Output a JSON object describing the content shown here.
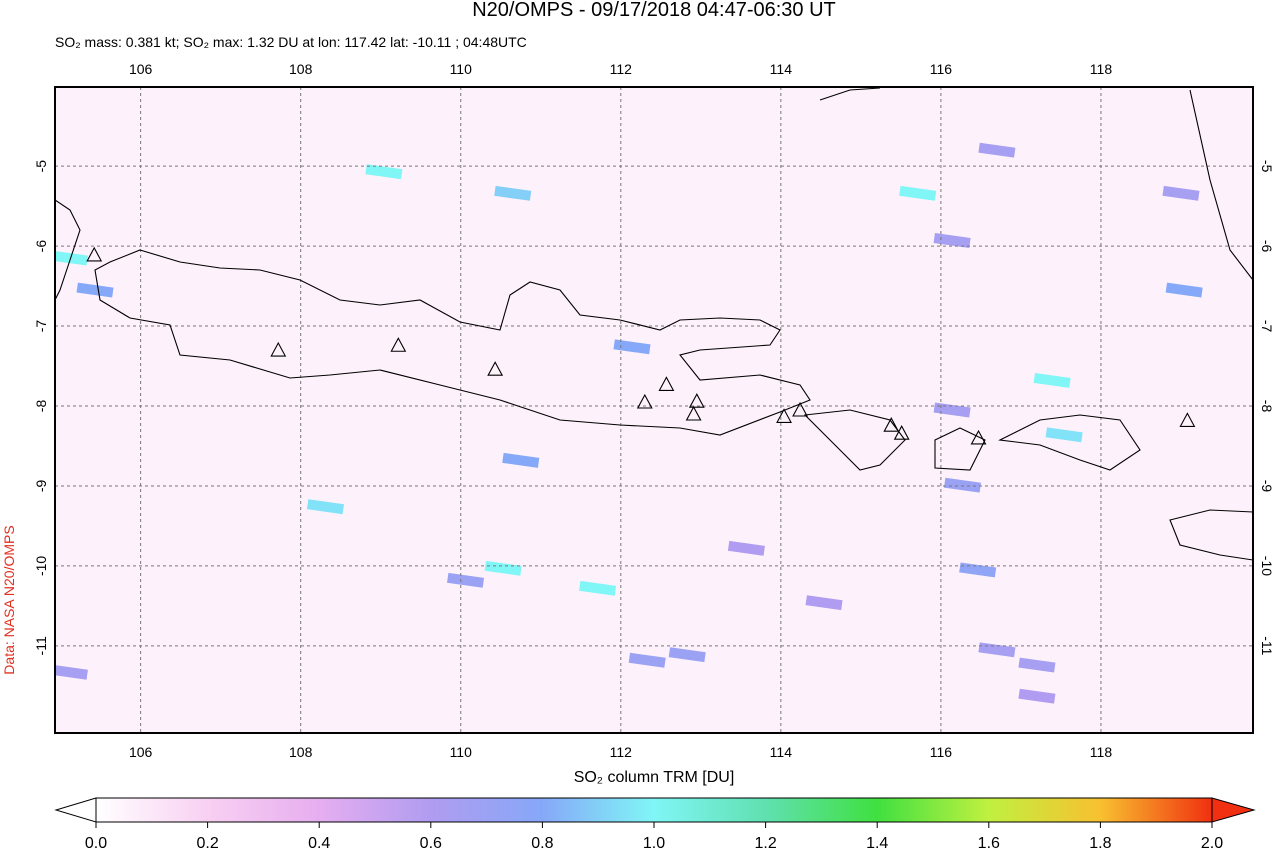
{
  "title": "N20/OMPS - 09/17/2018 04:47-06:30 UT",
  "subtitle": "SO₂ mass: 0.381 kt; SO₂ max: 1.32 DU at lon: 117.42 lat: -10.11 ; 04:48UTC",
  "credit": "Data: NASA N20/OMPS",
  "map": {
    "xlim": [
      104.93,
      119.9
    ],
    "ylim": [
      -12.09,
      -4.01
    ],
    "xticks": [
      106,
      108,
      110,
      112,
      114,
      116,
      118
    ],
    "yticks": [
      -5,
      -6,
      -7,
      -8,
      -9,
      -10,
      -11
    ],
    "volcanoes": {
      "lon": [
        105.42,
        107.72,
        109.22,
        110.43,
        112.3,
        112.57,
        112.95,
        112.91,
        114.04,
        114.24,
        115.38,
        115.51,
        116.47,
        119.08
      ],
      "lat": [
        -6.11,
        -7.3,
        -7.24,
        -7.54,
        -7.95,
        -7.73,
        -7.94,
        -8.1,
        -8.13,
        -8.05,
        -8.24,
        -8.34,
        -8.4,
        -8.18
      ]
    },
    "so2_cells": {
      "lon": [
        109.04,
        110.65,
        115.71,
        105.11,
        105.43,
        112.14,
        117.39,
        117.54,
        110.75,
        108.31,
        110.53,
        111.71,
        116.7,
        119.04,
        116.7,
        117.2,
        116.46,
        116.27,
        116.14,
        110.06,
        112.33,
        112.83,
        113.57,
        114.54,
        116.14,
        105.11,
        117.2,
        119.0
      ],
      "lat": [
        -5.07,
        -5.34,
        -5.34,
        -6.15,
        -6.55,
        -7.26,
        -7.68,
        -8.36,
        -8.68,
        -9.26,
        -10.03,
        -10.28,
        -4.8,
        -6.55,
        -11.05,
        -11.24,
        -10.05,
        -8.99,
        -5.93,
        -10.18,
        -11.18,
        -11.11,
        -9.78,
        -10.46,
        -8.05,
        -11.33,
        -11.63,
        -5.34
      ],
      "values": [
        1.0,
        0.9,
        1.0,
        1.0,
        0.8,
        0.8,
        1.0,
        0.95,
        0.8,
        0.95,
        1.0,
        1.0,
        0.65,
        0.8,
        0.65,
        0.65,
        0.75,
        0.7,
        0.65,
        0.7,
        0.7,
        0.7,
        0.6,
        0.6,
        0.65,
        0.65,
        0.6,
        0.65
      ]
    }
  },
  "colorbar": {
    "label": "SO₂ column TRM [DU]",
    "range": [
      0.0,
      2.0
    ],
    "ticks": [
      {
        "value": 0,
        "label": "0.0"
      },
      0.2,
      0.4,
      0.6,
      0.8,
      {
        "value": 1,
        "label": "1.0"
      },
      1.2,
      1.4,
      1.6,
      1.8,
      {
        "value": 2,
        "label": "2.0"
      }
    ]
  }
}
